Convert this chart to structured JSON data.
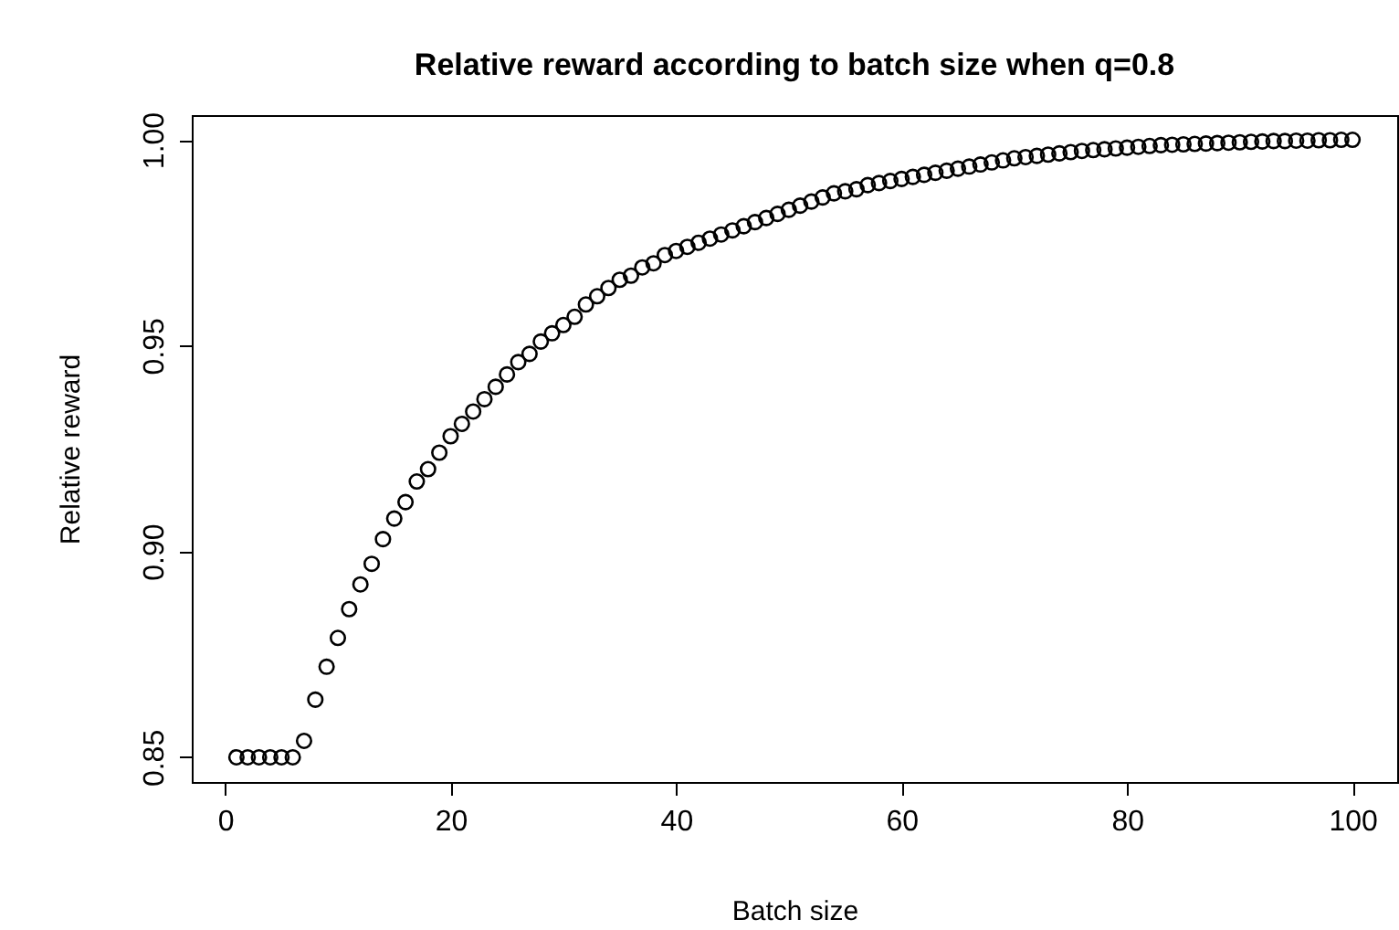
{
  "chart_data": {
    "type": "scatter",
    "title": "Relative reward according to batch size when q=0.8",
    "xlabel": "Batch size",
    "ylabel": "Relative reward",
    "marker": "circle",
    "xlim": [
      -2.96,
      103.96
    ],
    "ylim": [
      0.844,
      1.006
    ],
    "xticks": [
      0,
      20,
      40,
      60,
      80,
      100
    ],
    "yticks": [
      {
        "value": 0.85,
        "label": "0.85"
      },
      {
        "value": 0.9,
        "label": "0.90"
      },
      {
        "value": 0.95,
        "label": "0.95"
      },
      {
        "value": 1,
        "label": "1.00"
      }
    ],
    "x": [
      1,
      2,
      3,
      4,
      5,
      6,
      7,
      8,
      9,
      10,
      11,
      12,
      13,
      14,
      15,
      16,
      17,
      18,
      19,
      20,
      21,
      22,
      23,
      24,
      25,
      26,
      27,
      28,
      29,
      30,
      31,
      32,
      33,
      34,
      35,
      36,
      37,
      38,
      39,
      40,
      41,
      42,
      43,
      44,
      45,
      46,
      47,
      48,
      49,
      50,
      51,
      52,
      53,
      54,
      55,
      56,
      57,
      58,
      59,
      60,
      61,
      62,
      63,
      64,
      65,
      66,
      67,
      68,
      69,
      70,
      71,
      72,
      73,
      74,
      75,
      76,
      77,
      78,
      79,
      80,
      81,
      82,
      83,
      84,
      85,
      86,
      87,
      88,
      89,
      90,
      91,
      92,
      93,
      94,
      95,
      96,
      97,
      98,
      99,
      100
    ],
    "series": [
      {
        "color": "#000000",
        "values": [
          0.85,
          0.85,
          0.85,
          0.85,
          0.85,
          0.85,
          0.854,
          0.864,
          0.872,
          0.879,
          0.886,
          0.892,
          0.897,
          0.903,
          0.908,
          0.912,
          0.917,
          0.92,
          0.924,
          0.928,
          0.931,
          0.934,
          0.937,
          0.94,
          0.943,
          0.946,
          0.948,
          0.951,
          0.953,
          0.955,
          0.957,
          0.96,
          0.962,
          0.964,
          0.966,
          0.967,
          0.969,
          0.97,
          0.972,
          0.973,
          0.974,
          0.975,
          0.976,
          0.977,
          0.978,
          0.979,
          0.98,
          0.981,
          0.982,
          0.983,
          0.984,
          0.985,
          0.986,
          0.987,
          0.9875,
          0.988,
          0.989,
          0.9895,
          0.99,
          0.9905,
          0.991,
          0.9915,
          0.992,
          0.9925,
          0.993,
          0.9935,
          0.994,
          0.9945,
          0.995,
          0.9955,
          0.9958,
          0.9961,
          0.9964,
          0.9967,
          0.997,
          0.9973,
          0.9975,
          0.9977,
          0.9979,
          0.9981,
          0.9983,
          0.9985,
          0.9987,
          0.9988,
          0.9989,
          0.999,
          0.9991,
          0.9992,
          0.9993,
          0.9994,
          0.9995,
          0.9996,
          0.9997,
          0.9997,
          0.9998,
          0.9998,
          0.9999,
          0.9999,
          1,
          1
        ]
      }
    ]
  }
}
